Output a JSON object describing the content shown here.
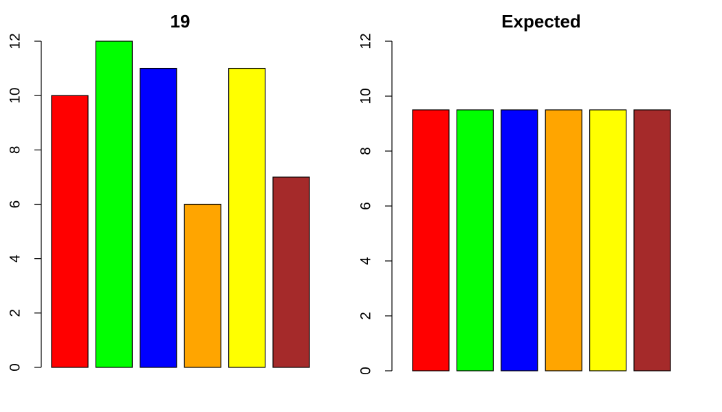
{
  "chart_data": [
    {
      "type": "bar",
      "title": "19",
      "xlabel": "",
      "ylabel": "",
      "ylim": [
        0,
        12
      ],
      "yticks": [
        0,
        2,
        4,
        6,
        8,
        10,
        12
      ],
      "values": [
        10,
        12,
        11,
        6,
        11,
        7
      ],
      "colors": [
        "#ff0000",
        "#00ff00",
        "#0000ff",
        "#ffa500",
        "#ffff00",
        "#a52a2a"
      ],
      "grid": false
    },
    {
      "type": "bar",
      "title": "Expected",
      "xlabel": "",
      "ylabel": "",
      "ylim": [
        0,
        12
      ],
      "yticks": [
        0,
        2,
        4,
        6,
        8,
        10,
        12
      ],
      "values": [
        9.5,
        9.5,
        9.5,
        9.5,
        9.5,
        9.5
      ],
      "colors": [
        "#ff0000",
        "#00ff00",
        "#0000ff",
        "#ffa500",
        "#ffff00",
        "#a52a2a"
      ],
      "grid": false
    }
  ]
}
